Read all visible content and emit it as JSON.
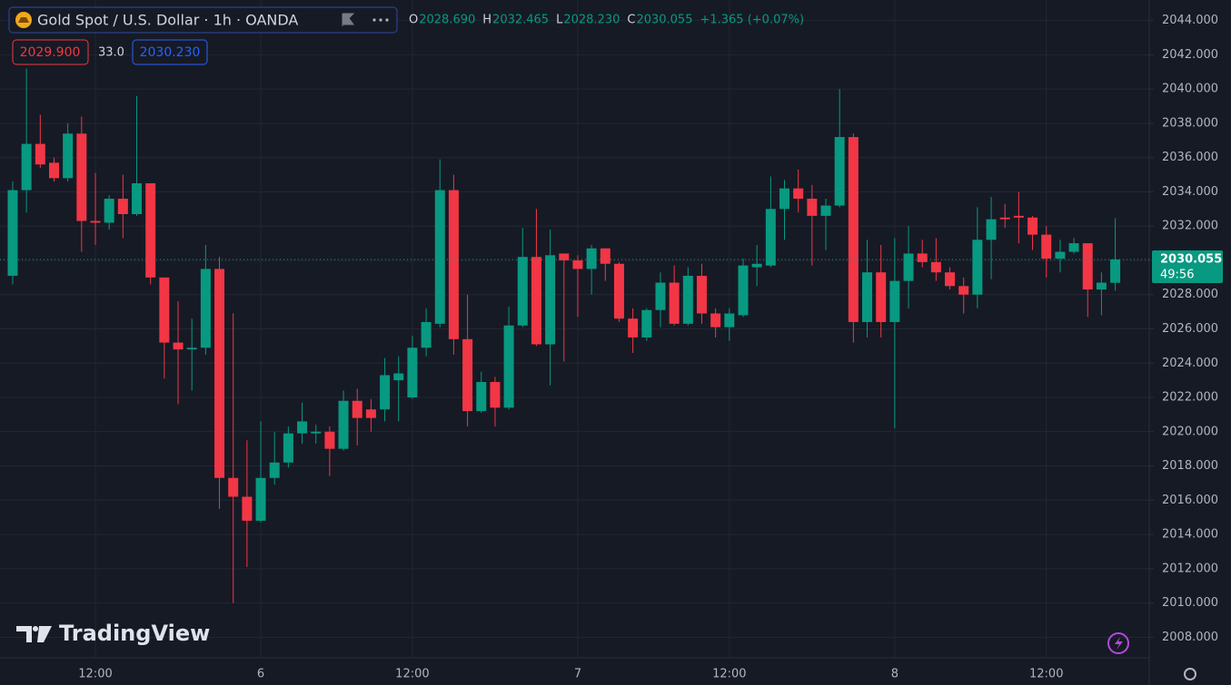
{
  "chart_data": {
    "type": "candlestick",
    "title": "Gold Spot / U.S. Dollar · 1h · OANDA",
    "ohlc_header": [
      {
        "key": "O",
        "value": "2028.690"
      },
      {
        "key": "H",
        "value": "2032.465"
      },
      {
        "key": "L",
        "value": "2028.230"
      },
      {
        "key": "C",
        "value": "2030.055"
      }
    ],
    "change": "+1.365 (+0.07%)",
    "bid": "2029.900",
    "spread": "33.0",
    "ask": "2030.230",
    "last_price": 2030.055,
    "countdown": "49:56",
    "logo": "TradingView",
    "up_color": "#089981",
    "down_color": "#f23645",
    "categories": [
      null,
      null,
      null,
      null,
      null,
      null,
      "12:00",
      null,
      null,
      null,
      null,
      null,
      null,
      null,
      null,
      null,
      null,
      null,
      "6",
      null,
      null,
      null,
      null,
      null,
      null,
      null,
      null,
      null,
      null,
      "12:00",
      null,
      null,
      null,
      null,
      null,
      null,
      null,
      null,
      null,
      null,
      null,
      "7",
      null,
      null,
      null,
      null,
      null,
      null,
      null,
      null,
      null,
      null,
      "12:00",
      null,
      null,
      null,
      null,
      null,
      null,
      null,
      null,
      null,
      null,
      null,
      "8",
      null,
      null,
      null,
      null,
      null,
      null,
      null,
      null,
      null,
      null,
      "12:00",
      null,
      null,
      null,
      null,
      null
    ],
    "open": [
      2029.1,
      2034.1,
      2036.8,
      2035.7,
      2034.8,
      2037.4,
      2032.3,
      2032.2,
      2033.6,
      2032.7,
      2034.5,
      2029.0,
      2025.2,
      2024.8,
      2024.9,
      2029.5,
      2017.3,
      2016.2,
      2014.8,
      2017.3,
      2018.2,
      2019.9,
      2019.9,
      2020.0,
      2019.0,
      2021.8,
      2021.3,
      2021.3,
      2023.0,
      2022.0,
      2024.9,
      2026.3,
      2034.1,
      2025.4,
      2021.2,
      2022.9,
      2021.4,
      2026.2,
      2030.2,
      2025.1,
      2030.4,
      2030.0,
      2029.5,
      2030.7,
      2029.8,
      2026.6,
      2025.5,
      2027.1,
      2028.7,
      2026.3,
      2029.1,
      2026.9,
      2026.1,
      2026.8,
      2029.6,
      2029.7,
      2033.0,
      2034.2,
      2033.6,
      2032.6,
      2033.2,
      2037.2,
      2026.4,
      2029.3,
      2026.4,
      2028.8,
      2030.4,
      2029.9,
      2029.3,
      2028.5,
      2028.0,
      2031.2,
      2032.5,
      2032.6,
      2032.5,
      2031.5,
      2030.1,
      2030.5,
      2031.0,
      2028.3,
      2028.69
    ],
    "high": [
      2034.6,
      2041.2,
      2038.5,
      2036.0,
      2038.0,
      2038.4,
      2035.1,
      2033.8,
      2035.0,
      2039.6,
      2034.5,
      2029.0,
      2027.6,
      2026.6,
      2030.9,
      2030.2,
      2026.9,
      2019.5,
      2020.6,
      2020.0,
      2020.3,
      2021.7,
      2020.4,
      2020.3,
      2022.4,
      2022.5,
      2021.9,
      2024.3,
      2024.4,
      2025.6,
      2027.2,
      2035.9,
      2035.0,
      2028.0,
      2023.5,
      2023.2,
      2027.3,
      2031.9,
      2033.0,
      2031.8,
      2030.4,
      2030.3,
      2030.9,
      2030.7,
      2029.9,
      2027.2,
      2027.2,
      2029.3,
      2029.7,
      2029.6,
      2029.8,
      2027.2,
      2027.2,
      2030.1,
      2030.9,
      2034.9,
      2034.7,
      2035.3,
      2034.4,
      2033.6,
      2040.0,
      2037.4,
      2031.2,
      2030.9,
      2031.3,
      2032.0,
      2031.2,
      2031.3,
      2029.6,
      2029.0,
      2033.1,
      2033.7,
      2033.3,
      2034.0,
      2032.6,
      2032.0,
      2031.2,
      2031.3,
      2031.0,
      2029.3,
      2032.465
    ],
    "low": [
      2028.6,
      2032.8,
      2035.4,
      2034.6,
      2034.6,
      2030.5,
      2030.9,
      2031.8,
      2031.3,
      2032.6,
      2028.6,
      2023.1,
      2021.6,
      2022.4,
      2024.5,
      2015.5,
      2010.0,
      2012.1,
      2014.7,
      2016.9,
      2017.9,
      2019.3,
      2019.3,
      2017.4,
      2018.9,
      2019.2,
      2020.0,
      2020.6,
      2020.6,
      2021.9,
      2024.4,
      2026.1,
      2024.5,
      2020.3,
      2021.1,
      2020.3,
      2021.3,
      2026.1,
      2025.0,
      2022.7,
      2024.1,
      2026.7,
      2028.0,
      2028.8,
      2026.4,
      2024.6,
      2025.3,
      2026.1,
      2026.2,
      2026.2,
      2026.3,
      2025.5,
      2025.3,
      2026.7,
      2028.5,
      2029.6,
      2031.2,
      2032.8,
      2029.7,
      2030.6,
      2033.1,
      2025.2,
      2025.5,
      2025.5,
      2020.2,
      2027.2,
      2029.6,
      2028.8,
      2028.3,
      2026.9,
      2027.2,
      2028.9,
      2031.9,
      2031.0,
      2030.6,
      2029.0,
      2029.3,
      2030.4,
      2026.7,
      2026.8,
      2028.23
    ],
    "close": [
      2034.1,
      2036.8,
      2035.6,
      2034.8,
      2037.4,
      2032.3,
      2032.2,
      2033.6,
      2032.7,
      2034.5,
      2029.0,
      2025.2,
      2024.8,
      2024.9,
      2029.5,
      2017.3,
      2016.2,
      2014.8,
      2017.3,
      2018.2,
      2019.9,
      2020.6,
      2020.0,
      2019.0,
      2021.8,
      2020.8,
      2020.8,
      2023.3,
      2023.4,
      2024.9,
      2026.4,
      2034.1,
      2025.4,
      2021.2,
      2022.9,
      2021.4,
      2026.2,
      2030.2,
      2025.1,
      2030.3,
      2030.0,
      2029.5,
      2030.7,
      2029.8,
      2026.6,
      2025.5,
      2027.1,
      2028.7,
      2026.3,
      2029.1,
      2026.9,
      2026.1,
      2026.9,
      2029.7,
      2029.8,
      2033.0,
      2034.2,
      2033.6,
      2032.6,
      2033.2,
      2037.2,
      2026.4,
      2029.3,
      2026.4,
      2028.8,
      2030.4,
      2029.9,
      2029.3,
      2028.5,
      2028.0,
      2031.2,
      2032.4,
      2032.4,
      2032.5,
      2031.5,
      2030.1,
      2030.5,
      2031.0,
      2028.3,
      2028.7,
      2030.055
    ],
    "ylim": [
      2006.8,
      2045.2
    ],
    "yticks": [
      {
        "value": 2008,
        "label": "2008.000"
      },
      {
        "value": 2010,
        "label": "2010.000"
      },
      {
        "value": 2012,
        "label": "2012.000"
      },
      {
        "value": 2014,
        "label": "2014.000"
      },
      {
        "value": 2016,
        "label": "2016.000"
      },
      {
        "value": 2018,
        "label": "2018.000"
      },
      {
        "value": 2020,
        "label": "2020.000"
      },
      {
        "value": 2022,
        "label": "2022.000"
      },
      {
        "value": 2024,
        "label": "2024.000"
      },
      {
        "value": 2026,
        "label": "2026.000"
      },
      {
        "value": 2028,
        "label": "2028.000"
      },
      {
        "value": 2030,
        "label": "2030.000"
      },
      {
        "value": 2032,
        "label": "2032.000"
      },
      {
        "value": 2034,
        "label": "2034.000"
      },
      {
        "value": 2036,
        "label": "2036.000"
      },
      {
        "value": 2038,
        "label": "2038.000"
      },
      {
        "value": 2040,
        "label": "2040.000"
      },
      {
        "value": 2042,
        "label": "2042.000"
      },
      {
        "value": 2044,
        "label": "2044.000"
      }
    ],
    "grid": true
  }
}
